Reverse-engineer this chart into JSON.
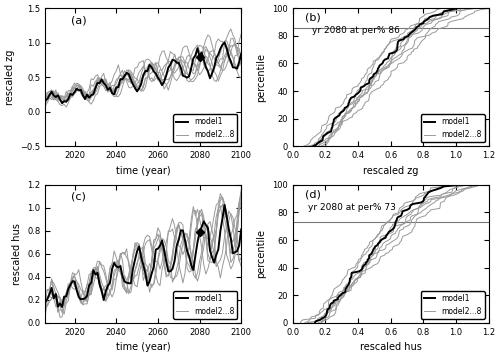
{
  "fig_width": 5.0,
  "fig_height": 3.57,
  "dpi": 100,
  "n_models_gray": 7,
  "zg_ylim": [
    -0.5,
    1.5
  ],
  "zg_yticks": [
    -0.5,
    0,
    0.5,
    1.0,
    1.5
  ],
  "hus_ylim": [
    0,
    1.2
  ],
  "hus_yticks": [
    0,
    0.2,
    0.4,
    0.6,
    0.8,
    1.0,
    1.2
  ],
  "time_xlim": [
    2006,
    2100
  ],
  "time_xticks": [
    2020,
    2040,
    2060,
    2080,
    2100
  ],
  "cdf_xlim_zg": [
    0,
    1.2
  ],
  "cdf_xticks_zg": [
    0,
    0.2,
    0.4,
    0.6,
    0.8,
    1.0,
    1.2
  ],
  "cdf_xlim_hus": [
    0,
    1.2
  ],
  "cdf_xticks_hus": [
    0,
    0.2,
    0.4,
    0.6,
    0.8,
    1.0,
    1.2
  ],
  "cdf_ylim": [
    0,
    100
  ],
  "cdf_yticks": [
    0,
    20,
    40,
    60,
    80,
    100
  ],
  "zg_per_line": 86,
  "hus_per_line": 73,
  "panel_labels": [
    "(a)",
    "(b)",
    "(c)",
    "(d)"
  ],
  "xlabel_time": "time (year)",
  "ylabel_zg": "rescaled zg",
  "ylabel_hus": "rescaled hus",
  "xlabel_cdf_zg": "rescaled zg",
  "xlabel_cdf_hus": "rescaled hus",
  "ylabel_cdf": "percentile",
  "model1_color": "#000000",
  "gray_color": "#999999",
  "marker_year": 2080,
  "legend_labels": [
    "model1",
    "model2...8"
  ],
  "annotation_zg": "yr 2080 at per% 86",
  "annotation_hus": "yr 2080 at per% 73",
  "seed": 42
}
